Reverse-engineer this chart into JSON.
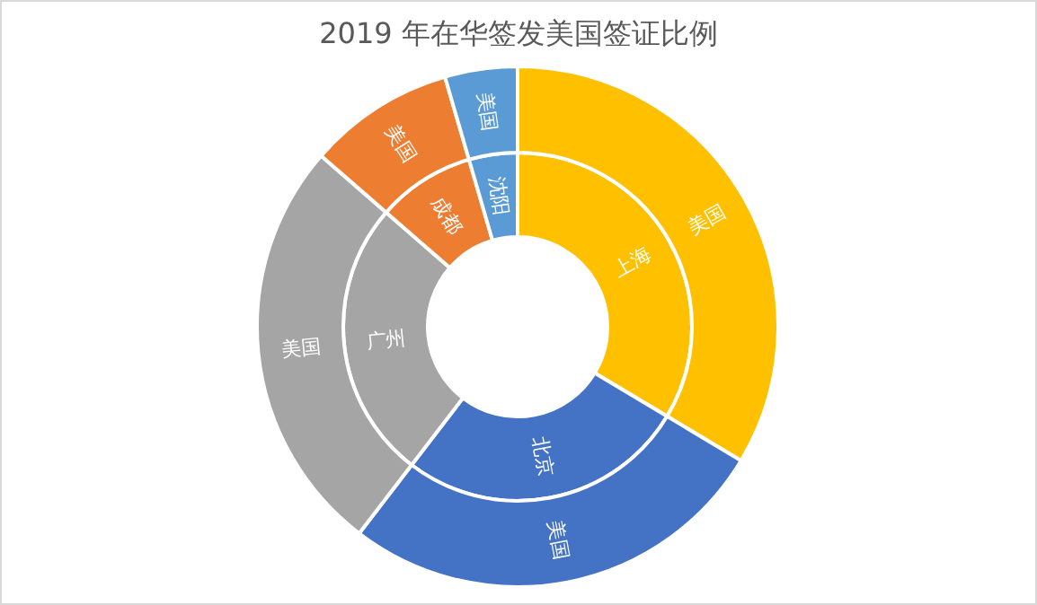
{
  "chart_data": {
    "type": "donut",
    "title": "2019 年在华签发美国签证比例",
    "categories": [
      "上海",
      "北京",
      "广州",
      "成都",
      "沈阳"
    ],
    "colors": [
      "#ffc000",
      "#4472c4",
      "#a5a5a5",
      "#ed7d31",
      "#5b9bd5"
    ],
    "series": [
      {
        "values": [
          33.6,
          26.8,
          26.0,
          9.1,
          4.5
        ]
      },
      {
        "name": "美国",
        "values": [
          33.6,
          26.8,
          26.0,
          9.1,
          4.5
        ]
      }
    ]
  }
}
